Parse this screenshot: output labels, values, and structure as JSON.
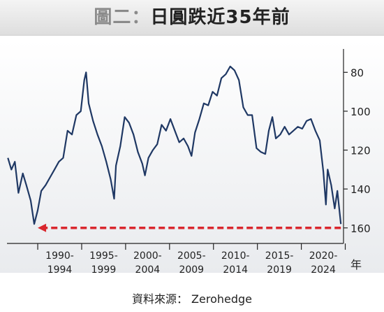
{
  "title": {
    "prefix": "圖二：",
    "text": "日圓跌近35年前"
  },
  "source": "資料來源： Zerohedge",
  "chart_data": {
    "type": "line",
    "title": "日圓跌近35年前",
    "xlabel": "年",
    "ylabel": "",
    "x_period_labels": [
      [
        "1990-",
        "1994"
      ],
      [
        "1995-",
        "1999"
      ],
      [
        "2000-",
        "2004"
      ],
      [
        "2005-",
        "2009"
      ],
      [
        "2010-",
        "2014"
      ],
      [
        "2015-",
        "2019"
      ],
      [
        "2020-",
        "2024"
      ]
    ],
    "x_range": [
      1986.5,
      2024.8
    ],
    "ylim": [
      168,
      68
    ],
    "y_inverted": true,
    "y_axis_position": "right",
    "yticks": [
      80,
      100,
      120,
      140,
      160
    ],
    "grid": false,
    "series": [
      {
        "name": "",
        "color": "#1f3864",
        "points": [
          [
            1986.6,
            124
          ],
          [
            1987.0,
            130
          ],
          [
            1987.4,
            126
          ],
          [
            1987.8,
            142
          ],
          [
            1988.3,
            132
          ],
          [
            1988.7,
            138
          ],
          [
            1989.2,
            146
          ],
          [
            1989.6,
            158
          ],
          [
            1990.0,
            151
          ],
          [
            1990.4,
            141
          ],
          [
            1990.9,
            138
          ],
          [
            1991.4,
            134
          ],
          [
            1991.9,
            130
          ],
          [
            1992.4,
            126
          ],
          [
            1992.9,
            124
          ],
          [
            1993.4,
            110
          ],
          [
            1993.9,
            112
          ],
          [
            1994.4,
            102
          ],
          [
            1994.9,
            100
          ],
          [
            1995.3,
            84
          ],
          [
            1995.5,
            80
          ],
          [
            1995.8,
            96
          ],
          [
            1996.3,
            105
          ],
          [
            1996.8,
            112
          ],
          [
            1997.3,
            118
          ],
          [
            1997.8,
            126
          ],
          [
            1998.3,
            135
          ],
          [
            1998.7,
            145
          ],
          [
            1998.9,
            128
          ],
          [
            1999.4,
            118
          ],
          [
            1999.9,
            103
          ],
          [
            2000.4,
            106
          ],
          [
            2000.9,
            112
          ],
          [
            2001.4,
            121
          ],
          [
            2001.9,
            127
          ],
          [
            2002.2,
            133
          ],
          [
            2002.6,
            124
          ],
          [
            2003.1,
            120
          ],
          [
            2003.6,
            117
          ],
          [
            2004.1,
            107
          ],
          [
            2004.6,
            110
          ],
          [
            2005.1,
            104
          ],
          [
            2005.6,
            110
          ],
          [
            2006.1,
            116
          ],
          [
            2006.6,
            114
          ],
          [
            2007.1,
            118
          ],
          [
            2007.5,
            123
          ],
          [
            2007.9,
            111
          ],
          [
            2008.4,
            104
          ],
          [
            2008.9,
            96
          ],
          [
            2009.4,
            97
          ],
          [
            2009.9,
            90
          ],
          [
            2010.4,
            92
          ],
          [
            2010.9,
            83
          ],
          [
            2011.4,
            81
          ],
          [
            2011.9,
            77
          ],
          [
            2012.4,
            79
          ],
          [
            2012.9,
            84
          ],
          [
            2013.4,
            98
          ],
          [
            2013.9,
            102
          ],
          [
            2014.4,
            102
          ],
          [
            2014.9,
            119
          ],
          [
            2015.4,
            121
          ],
          [
            2015.9,
            122
          ],
          [
            2016.3,
            110
          ],
          [
            2016.7,
            103
          ],
          [
            2017.1,
            114
          ],
          [
            2017.6,
            112
          ],
          [
            2018.1,
            108
          ],
          [
            2018.6,
            112
          ],
          [
            2019.1,
            110
          ],
          [
            2019.6,
            108
          ],
          [
            2020.1,
            109
          ],
          [
            2020.6,
            105
          ],
          [
            2021.1,
            104
          ],
          [
            2021.6,
            110
          ],
          [
            2022.1,
            115
          ],
          [
            2022.5,
            131
          ],
          [
            2022.8,
            148
          ],
          [
            2023.0,
            130
          ],
          [
            2023.4,
            138
          ],
          [
            2023.8,
            150
          ],
          [
            2024.1,
            141
          ],
          [
            2024.5,
            158
          ]
        ]
      }
    ],
    "annotations": [
      {
        "type": "dashed-arrow",
        "color": "#d9272e",
        "y": 160,
        "x_from": 2024.5,
        "x_to": 1990.0
      }
    ]
  }
}
